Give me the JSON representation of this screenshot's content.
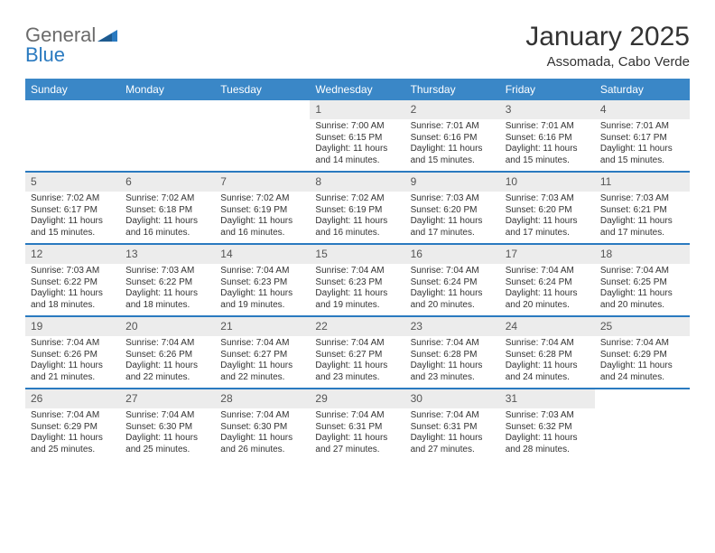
{
  "brand": {
    "name1": "General",
    "name2": "Blue"
  },
  "title": "January 2025",
  "location": "Assomada, Cabo Verde",
  "colors": {
    "header_bg": "#3a87c7",
    "header_text": "#ffffff",
    "week_border": "#2a7ac0",
    "daynum_bg": "#ececec",
    "daynum_text": "#555555",
    "body_text": "#333333",
    "logo_gray": "#6b6b6b",
    "logo_blue": "#2a7ac0",
    "background": "#ffffff"
  },
  "typography": {
    "title_fontsize": 30,
    "location_fontsize": 15,
    "dayhead_fontsize": 12,
    "daynum_fontsize": 12,
    "cell_fontsize": 10,
    "logo_fontsize": 22
  },
  "day_labels": [
    "Sunday",
    "Monday",
    "Tuesday",
    "Wednesday",
    "Thursday",
    "Friday",
    "Saturday"
  ],
  "weeks": [
    [
      {
        "day": "",
        "sunrise": "",
        "sunset": "",
        "daylight": ""
      },
      {
        "day": "",
        "sunrise": "",
        "sunset": "",
        "daylight": ""
      },
      {
        "day": "",
        "sunrise": "",
        "sunset": "",
        "daylight": ""
      },
      {
        "day": "1",
        "sunrise": "Sunrise: 7:00 AM",
        "sunset": "Sunset: 6:15 PM",
        "daylight": "Daylight: 11 hours and 14 minutes."
      },
      {
        "day": "2",
        "sunrise": "Sunrise: 7:01 AM",
        "sunset": "Sunset: 6:16 PM",
        "daylight": "Daylight: 11 hours and 15 minutes."
      },
      {
        "day": "3",
        "sunrise": "Sunrise: 7:01 AM",
        "sunset": "Sunset: 6:16 PM",
        "daylight": "Daylight: 11 hours and 15 minutes."
      },
      {
        "day": "4",
        "sunrise": "Sunrise: 7:01 AM",
        "sunset": "Sunset: 6:17 PM",
        "daylight": "Daylight: 11 hours and 15 minutes."
      }
    ],
    [
      {
        "day": "5",
        "sunrise": "Sunrise: 7:02 AM",
        "sunset": "Sunset: 6:17 PM",
        "daylight": "Daylight: 11 hours and 15 minutes."
      },
      {
        "day": "6",
        "sunrise": "Sunrise: 7:02 AM",
        "sunset": "Sunset: 6:18 PM",
        "daylight": "Daylight: 11 hours and 16 minutes."
      },
      {
        "day": "7",
        "sunrise": "Sunrise: 7:02 AM",
        "sunset": "Sunset: 6:19 PM",
        "daylight": "Daylight: 11 hours and 16 minutes."
      },
      {
        "day": "8",
        "sunrise": "Sunrise: 7:02 AM",
        "sunset": "Sunset: 6:19 PM",
        "daylight": "Daylight: 11 hours and 16 minutes."
      },
      {
        "day": "9",
        "sunrise": "Sunrise: 7:03 AM",
        "sunset": "Sunset: 6:20 PM",
        "daylight": "Daylight: 11 hours and 17 minutes."
      },
      {
        "day": "10",
        "sunrise": "Sunrise: 7:03 AM",
        "sunset": "Sunset: 6:20 PM",
        "daylight": "Daylight: 11 hours and 17 minutes."
      },
      {
        "day": "11",
        "sunrise": "Sunrise: 7:03 AM",
        "sunset": "Sunset: 6:21 PM",
        "daylight": "Daylight: 11 hours and 17 minutes."
      }
    ],
    [
      {
        "day": "12",
        "sunrise": "Sunrise: 7:03 AM",
        "sunset": "Sunset: 6:22 PM",
        "daylight": "Daylight: 11 hours and 18 minutes."
      },
      {
        "day": "13",
        "sunrise": "Sunrise: 7:03 AM",
        "sunset": "Sunset: 6:22 PM",
        "daylight": "Daylight: 11 hours and 18 minutes."
      },
      {
        "day": "14",
        "sunrise": "Sunrise: 7:04 AM",
        "sunset": "Sunset: 6:23 PM",
        "daylight": "Daylight: 11 hours and 19 minutes."
      },
      {
        "day": "15",
        "sunrise": "Sunrise: 7:04 AM",
        "sunset": "Sunset: 6:23 PM",
        "daylight": "Daylight: 11 hours and 19 minutes."
      },
      {
        "day": "16",
        "sunrise": "Sunrise: 7:04 AM",
        "sunset": "Sunset: 6:24 PM",
        "daylight": "Daylight: 11 hours and 20 minutes."
      },
      {
        "day": "17",
        "sunrise": "Sunrise: 7:04 AM",
        "sunset": "Sunset: 6:24 PM",
        "daylight": "Daylight: 11 hours and 20 minutes."
      },
      {
        "day": "18",
        "sunrise": "Sunrise: 7:04 AM",
        "sunset": "Sunset: 6:25 PM",
        "daylight": "Daylight: 11 hours and 20 minutes."
      }
    ],
    [
      {
        "day": "19",
        "sunrise": "Sunrise: 7:04 AM",
        "sunset": "Sunset: 6:26 PM",
        "daylight": "Daylight: 11 hours and 21 minutes."
      },
      {
        "day": "20",
        "sunrise": "Sunrise: 7:04 AM",
        "sunset": "Sunset: 6:26 PM",
        "daylight": "Daylight: 11 hours and 22 minutes."
      },
      {
        "day": "21",
        "sunrise": "Sunrise: 7:04 AM",
        "sunset": "Sunset: 6:27 PM",
        "daylight": "Daylight: 11 hours and 22 minutes."
      },
      {
        "day": "22",
        "sunrise": "Sunrise: 7:04 AM",
        "sunset": "Sunset: 6:27 PM",
        "daylight": "Daylight: 11 hours and 23 minutes."
      },
      {
        "day": "23",
        "sunrise": "Sunrise: 7:04 AM",
        "sunset": "Sunset: 6:28 PM",
        "daylight": "Daylight: 11 hours and 23 minutes."
      },
      {
        "day": "24",
        "sunrise": "Sunrise: 7:04 AM",
        "sunset": "Sunset: 6:28 PM",
        "daylight": "Daylight: 11 hours and 24 minutes."
      },
      {
        "day": "25",
        "sunrise": "Sunrise: 7:04 AM",
        "sunset": "Sunset: 6:29 PM",
        "daylight": "Daylight: 11 hours and 24 minutes."
      }
    ],
    [
      {
        "day": "26",
        "sunrise": "Sunrise: 7:04 AM",
        "sunset": "Sunset: 6:29 PM",
        "daylight": "Daylight: 11 hours and 25 minutes."
      },
      {
        "day": "27",
        "sunrise": "Sunrise: 7:04 AM",
        "sunset": "Sunset: 6:30 PM",
        "daylight": "Daylight: 11 hours and 25 minutes."
      },
      {
        "day": "28",
        "sunrise": "Sunrise: 7:04 AM",
        "sunset": "Sunset: 6:30 PM",
        "daylight": "Daylight: 11 hours and 26 minutes."
      },
      {
        "day": "29",
        "sunrise": "Sunrise: 7:04 AM",
        "sunset": "Sunset: 6:31 PM",
        "daylight": "Daylight: 11 hours and 27 minutes."
      },
      {
        "day": "30",
        "sunrise": "Sunrise: 7:04 AM",
        "sunset": "Sunset: 6:31 PM",
        "daylight": "Daylight: 11 hours and 27 minutes."
      },
      {
        "day": "31",
        "sunrise": "Sunrise: 7:03 AM",
        "sunset": "Sunset: 6:32 PM",
        "daylight": "Daylight: 11 hours and 28 minutes."
      },
      {
        "day": "",
        "sunrise": "",
        "sunset": "",
        "daylight": ""
      }
    ]
  ]
}
